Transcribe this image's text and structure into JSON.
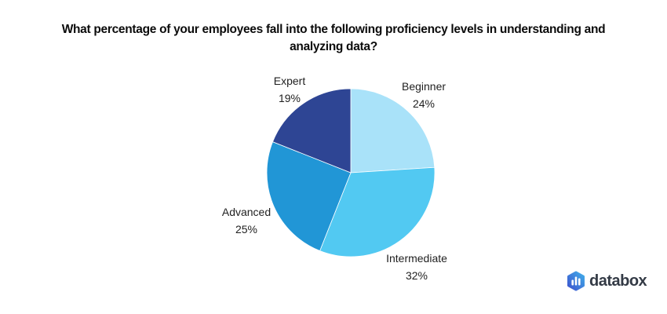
{
  "title": {
    "line1": "What percentage of your employees fall into the following proficiency levels in understanding and",
    "line2": "analyzing data?"
  },
  "chart_data": {
    "type": "pie",
    "title": "What percentage of your employees fall into the following proficiency levels in understanding and analyzing data?",
    "start_angle_deg": 0,
    "direction": "clockwise",
    "slice_border_color": "#FFFFFF",
    "labels_style": "outside slices, category name above percentage",
    "legend_position": "none",
    "slices": [
      {
        "label": "Beginner",
        "value": 24,
        "pct_label": "24%",
        "color": "#A9E2F9"
      },
      {
        "label": "Intermediate",
        "value": 32,
        "pct_label": "32%",
        "color": "#52C9F2"
      },
      {
        "label": "Advanced",
        "value": 25,
        "pct_label": "25%",
        "color": "#2196D6"
      },
      {
        "label": "Expert",
        "value": 19,
        "pct_label": "19%",
        "color": "#2E4594"
      }
    ]
  },
  "branding": {
    "logo_text": "databox",
    "logo_icon": "databox-hexagon-bar-chart-icon",
    "icon_gradient_start": "#3C53CE",
    "icon_gradient_end": "#41ADE9",
    "text_color": "#333A45"
  },
  "colors": {
    "background": "#FFFFFF",
    "title_text": "#0B0B0B",
    "label_text": "#1F1F1F"
  }
}
